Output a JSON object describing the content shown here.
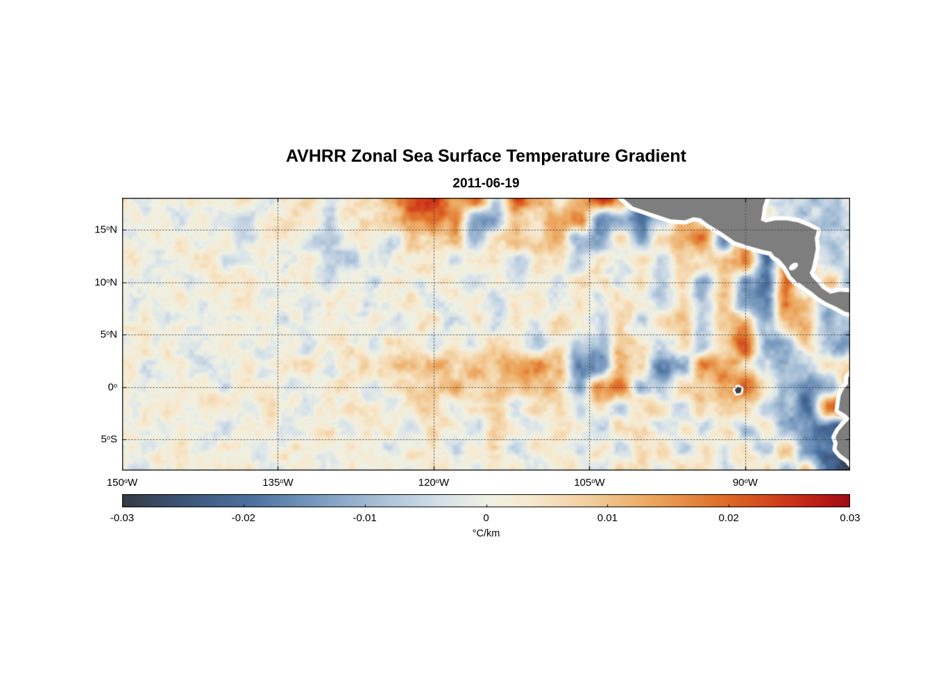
{
  "title": "AVHRR Zonal Sea Surface Temperature Gradient",
  "subtitle": "2011-06-19",
  "chart_data": {
    "type": "heatmap",
    "xlabel": "",
    "ylabel": "",
    "lon_range": [
      -150,
      -79.9
    ],
    "lat_range": [
      -7.95,
      18.05
    ],
    "lon_gridlines": [
      -150,
      -135,
      -120,
      -105,
      -90
    ],
    "lat_gridlines": [
      15,
      10,
      5,
      0,
      -5
    ],
    "axes": {
      "x_ticks": [
        {
          "value": -150,
          "num": "150",
          "hemi": "W"
        },
        {
          "value": -135,
          "num": "135",
          "hemi": "W"
        },
        {
          "value": -120,
          "num": "120",
          "hemi": "W"
        },
        {
          "value": -105,
          "num": "105",
          "hemi": "W"
        },
        {
          "value": -90,
          "num": "90",
          "hemi": "W"
        }
      ],
      "y_ticks": [
        {
          "value": 15,
          "num": "15",
          "hemi": "N"
        },
        {
          "value": 10,
          "num": "10",
          "hemi": "N"
        },
        {
          "value": 5,
          "num": "5",
          "hemi": "N"
        },
        {
          "value": 0,
          "num": "0",
          "hemi": ""
        },
        {
          "value": -5,
          "num": "5",
          "hemi": "S"
        }
      ]
    },
    "colorbar": {
      "min": -0.03,
      "max": 0.03,
      "tick_values": [
        -0.03,
        -0.02,
        -0.01,
        0,
        0.01,
        0.02,
        0.03
      ],
      "tick_labels": [
        "-0.03",
        "-0.02",
        "-0.01",
        "0",
        "0.01",
        "0.02",
        "0.03"
      ],
      "unit": "°C/km"
    },
    "colormap": [
      [
        0.0,
        "#333b42"
      ],
      [
        0.09,
        "#3e567c"
      ],
      [
        0.18,
        "#4d72a0"
      ],
      [
        0.27,
        "#7b9cc0"
      ],
      [
        0.36,
        "#abc2d8"
      ],
      [
        0.44,
        "#d6e1ea"
      ],
      [
        0.5,
        "#eff1e4"
      ],
      [
        0.56,
        "#f7e9cf"
      ],
      [
        0.64,
        "#f3cf9e"
      ],
      [
        0.73,
        "#eca55c"
      ],
      [
        0.82,
        "#e0702a"
      ],
      [
        0.9,
        "#d23f1b"
      ],
      [
        0.96,
        "#bc1a16"
      ],
      [
        1.0,
        "#9c0e13"
      ]
    ],
    "land_color": "#7e7e7e",
    "coast_halo_color": "#ffffff",
    "grid": {
      "lon_start": -150,
      "dlon": 2,
      "lat_start": 18,
      "dlat": 2,
      "values": [
        [
          0.002,
          -0.002,
          0.001,
          0.003,
          -0.001,
          0.002,
          0.004,
          -0.003,
          0.001,
          0.005,
          -0.002,
          0.003,
          0.008,
          0.012,
          0.022,
          0.026,
          0.012,
          0.02,
          -0.008,
          0.022,
          0.01,
          0.004,
          0.012,
          0.026,
          0.018,
          -0.02,
          -0.012,
          0.004,
          0.002,
          0.002,
          0.003,
          0.002,
          -0.004,
          -0.008,
          -0.006,
          -0.004
        ],
        [
          -0.001,
          0.002,
          0.001,
          -0.002,
          0.003,
          0.001,
          -0.003,
          0.002,
          0.004,
          0.002,
          -0.004,
          0.002,
          0.005,
          0.01,
          0.018,
          0.02,
          0.015,
          -0.01,
          -0.012,
          0.008,
          0.008,
          0.015,
          0.018,
          -0.015,
          -0.01,
          -0.018,
          -0.008,
          0.015,
          0.01,
          0.004,
          0.002,
          0.003,
          -0.003,
          -0.006,
          -0.008,
          -0.005
        ],
        [
          0.001,
          -0.002,
          0.002,
          0.003,
          -0.001,
          0.002,
          -0.003,
          0.001,
          0.002,
          -0.004,
          -0.008,
          0.002,
          0.003,
          -0.006,
          0.008,
          0.006,
          0.01,
          -0.008,
          0.004,
          0.012,
          0.006,
          0.01,
          -0.01,
          -0.012,
          0.006,
          -0.012,
          0.01,
          0.012,
          0.018,
          -0.015,
          0.018,
          -0.022,
          0.015,
          -0.005,
          -0.008,
          -0.006
        ],
        [
          0.002,
          0.001,
          -0.002,
          0.002,
          0.004,
          -0.002,
          0.001,
          0.003,
          -0.002,
          0.002,
          -0.004,
          -0.005,
          -0.005,
          0.002,
          0.004,
          0.004,
          -0.003,
          0.003,
          0.005,
          -0.004,
          0.003,
          0.004,
          -0.006,
          0.004,
          -0.005,
          0.005,
          -0.008,
          0.006,
          0.008,
          0.01,
          0.015,
          -0.018,
          0.018,
          0.008,
          -0.006,
          -0.004
        ],
        [
          -0.001,
          0.002,
          0.001,
          -0.002,
          0.001,
          0.003,
          0.002,
          -0.002,
          0.003,
          0.001,
          -0.003,
          0.002,
          -0.004,
          0.003,
          -0.003,
          0.004,
          0.002,
          -0.004,
          0.003,
          -0.003,
          0.004,
          -0.005,
          0.004,
          0.005,
          -0.004,
          0.004,
          -0.006,
          0.005,
          -0.01,
          0.008,
          -0.012,
          -0.02,
          0.018,
          -0.01,
          0.012,
          -0.008
        ],
        [
          0.001,
          -0.001,
          0.002,
          0.002,
          -0.002,
          0.001,
          0.003,
          -0.001,
          0.002,
          -0.002,
          0.001,
          0.003,
          -0.003,
          0.002,
          0.004,
          -0.003,
          0.002,
          0.003,
          -0.004,
          0.004,
          0.005,
          -0.004,
          0.006,
          -0.005,
          0.006,
          0.004,
          -0.006,
          0.008,
          -0.008,
          0.01,
          -0.015,
          -0.018,
          0.018,
          0.01,
          -0.012,
          0.006
        ],
        [
          0.002,
          0.001,
          -0.002,
          0.001,
          0.002,
          -0.001,
          0.001,
          0.002,
          -0.003,
          0.002,
          0.001,
          -0.002,
          0.003,
          -0.002,
          0.002,
          0.004,
          -0.003,
          0.003,
          -0.002,
          0.004,
          -0.004,
          0.005,
          0.004,
          -0.004,
          0.005,
          -0.005,
          0.006,
          0.008,
          -0.005,
          0.008,
          0.012,
          -0.01,
          0.008,
          0.012,
          -0.01,
          -0.006
        ],
        [
          0.001,
          0.002,
          0.001,
          -0.002,
          0.002,
          0.003,
          -0.002,
          0.001,
          0.003,
          -0.002,
          0.002,
          0.003,
          -0.003,
          0.004,
          0.003,
          -0.004,
          0.004,
          -0.003,
          0.005,
          0.004,
          -0.005,
          0.005,
          -0.008,
          -0.01,
          0.008,
          0.006,
          -0.006,
          0.006,
          -0.008,
          0.008,
          0.022,
          -0.012,
          -0.012,
          0.008,
          -0.01,
          -0.015
        ],
        [
          0.002,
          -0.002,
          0.003,
          0.002,
          -0.003,
          0.002,
          0.004,
          -0.002,
          0.003,
          0.004,
          -0.003,
          0.004,
          0.005,
          0.008,
          0.01,
          0.012,
          0.008,
          0.012,
          0.01,
          0.014,
          0.016,
          0.01,
          -0.02,
          -0.015,
          0.015,
          0.005,
          -0.018,
          -0.012,
          0.018,
          0.012,
          0.008,
          -0.006,
          -0.01,
          -0.008,
          0.004,
          0.006
        ],
        [
          0.001,
          0.002,
          -0.002,
          0.003,
          0.002,
          -0.002,
          0.003,
          0.002,
          -0.003,
          0.002,
          0.004,
          0.003,
          -0.004,
          0.004,
          0.006,
          0.008,
          0.01,
          0.006,
          0.008,
          0.01,
          0.012,
          0.008,
          -0.012,
          0.015,
          0.02,
          -0.008,
          -0.01,
          0.008,
          0.01,
          0.015,
          0.022,
          0.006,
          -0.008,
          -0.015,
          -0.01,
          0.01
        ],
        [
          0.002,
          0.001,
          0.003,
          -0.002,
          0.002,
          0.003,
          -0.002,
          0.003,
          0.002,
          -0.003,
          0.003,
          0.004,
          0.002,
          -0.003,
          0.004,
          0.005,
          -0.004,
          0.004,
          0.005,
          -0.004,
          0.005,
          0.006,
          -0.005,
          0.006,
          -0.006,
          0.006,
          0.005,
          -0.005,
          0.006,
          0.005,
          0.005,
          -0.006,
          -0.01,
          -0.022,
          0.02,
          0.03
        ],
        [
          0.001,
          0.002,
          -0.002,
          0.002,
          0.003,
          -0.002,
          0.002,
          0.003,
          -0.002,
          0.002,
          0.003,
          -0.003,
          0.004,
          0.003,
          -0.003,
          0.004,
          0.004,
          -0.004,
          0.005,
          0.004,
          -0.004,
          0.005,
          0.005,
          -0.005,
          0.005,
          0.006,
          -0.005,
          0.005,
          -0.006,
          0.006,
          -0.008,
          0.006,
          -0.01,
          -0.015,
          -0.025,
          -0.02
        ],
        [
          0.002,
          0.001,
          0.002,
          0.003,
          -0.002,
          0.002,
          0.003,
          -0.002,
          0.003,
          0.002,
          -0.002,
          0.003,
          0.003,
          -0.003,
          0.004,
          0.003,
          -0.003,
          0.004,
          0.005,
          -0.004,
          0.004,
          0.005,
          -0.004,
          0.005,
          -0.005,
          0.005,
          0.006,
          -0.005,
          0.006,
          -0.006,
          0.005,
          -0.008,
          0.008,
          -0.012,
          -0.02,
          -0.03
        ],
        [
          0.001,
          -0.002,
          0.002,
          0.002,
          -0.001,
          0.003,
          0.002,
          -0.002,
          0.002,
          0.003,
          -0.003,
          0.002,
          0.004,
          0.003,
          -0.003,
          0.003,
          0.004,
          -0.004,
          0.004,
          0.005,
          -0.004,
          0.005,
          0.004,
          -0.005,
          0.005,
          0.005,
          -0.005,
          0.006,
          0.005,
          -0.006,
          0.006,
          0.005,
          -0.01,
          0.008,
          -0.02,
          -0.028
        ]
      ]
    },
    "land_polygons": {
      "central_america": [
        [
          -102.2,
          18.4
        ],
        [
          -100.8,
          17.2
        ],
        [
          -99.0,
          16.6
        ],
        [
          -97.2,
          16.0
        ],
        [
          -95.8,
          15.9
        ],
        [
          -95.0,
          16.2
        ],
        [
          -94.3,
          16.1
        ],
        [
          -93.5,
          15.5
        ],
        [
          -92.3,
          14.8
        ],
        [
          -91.0,
          13.9
        ],
        [
          -89.8,
          13.5
        ],
        [
          -88.4,
          13.1
        ],
        [
          -87.5,
          12.9
        ],
        [
          -87.2,
          12.5
        ],
        [
          -86.7,
          12.2
        ],
        [
          -86.1,
          11.5
        ],
        [
          -85.8,
          11.0
        ],
        [
          -85.6,
          10.6
        ],
        [
          -85.0,
          10.0
        ],
        [
          -84.7,
          9.9
        ],
        [
          -84.2,
          9.5
        ],
        [
          -83.6,
          9.1
        ],
        [
          -83.0,
          8.6
        ],
        [
          -82.2,
          8.1
        ],
        [
          -81.3,
          7.7
        ],
        [
          -80.4,
          7.2
        ],
        [
          -79.5,
          7.0
        ],
        [
          -79.5,
          9.0
        ],
        [
          -80.9,
          9.1
        ],
        [
          -81.8,
          8.9
        ],
        [
          -82.6,
          9.4
        ],
        [
          -83.0,
          9.9
        ],
        [
          -83.6,
          10.5
        ],
        [
          -83.8,
          10.9
        ],
        [
          -83.6,
          11.3
        ],
        [
          -83.4,
          12.2
        ],
        [
          -83.2,
          13.2
        ],
        [
          -83.3,
          14.2
        ],
        [
          -83.1,
          14.9
        ],
        [
          -83.9,
          15.3
        ],
        [
          -84.9,
          15.7
        ],
        [
          -86.0,
          15.9
        ],
        [
          -87.1,
          15.9
        ],
        [
          -88.0,
          15.7
        ],
        [
          -88.5,
          15.9
        ],
        [
          -88.4,
          16.4
        ],
        [
          -88.3,
          17.2
        ],
        [
          -87.9,
          18.4
        ]
      ],
      "south_america": [
        [
          -79.3,
          1.8
        ],
        [
          -80.1,
          0.9
        ],
        [
          -80.1,
          0.3
        ],
        [
          -80.5,
          -0.2
        ],
        [
          -80.8,
          -0.8
        ],
        [
          -80.9,
          -1.5
        ],
        [
          -81.0,
          -2.2
        ],
        [
          -80.3,
          -2.6
        ],
        [
          -79.9,
          -3.0
        ],
        [
          -80.4,
          -3.5
        ],
        [
          -81.0,
          -4.2
        ],
        [
          -81.3,
          -4.8
        ],
        [
          -81.1,
          -5.3
        ],
        [
          -81.2,
          -5.9
        ],
        [
          -80.8,
          -6.4
        ],
        [
          -80.1,
          -6.9
        ],
        [
          -79.5,
          -7.6
        ],
        [
          -79.0,
          -8.6
        ],
        [
          -78.0,
          -8.6
        ],
        [
          -78.0,
          1.8
        ]
      ],
      "galapagos": [
        [
          -91.0,
          -0.25
        ],
        [
          -90.7,
          0.05
        ],
        [
          -90.35,
          -0.15
        ],
        [
          -90.45,
          -0.55
        ],
        [
          -90.85,
          -0.6
        ]
      ],
      "lake": {
        "lon": -85.35,
        "lat": 11.5,
        "rlon": 0.5,
        "rlat": 0.28,
        "rot_deg": -35
      }
    }
  }
}
